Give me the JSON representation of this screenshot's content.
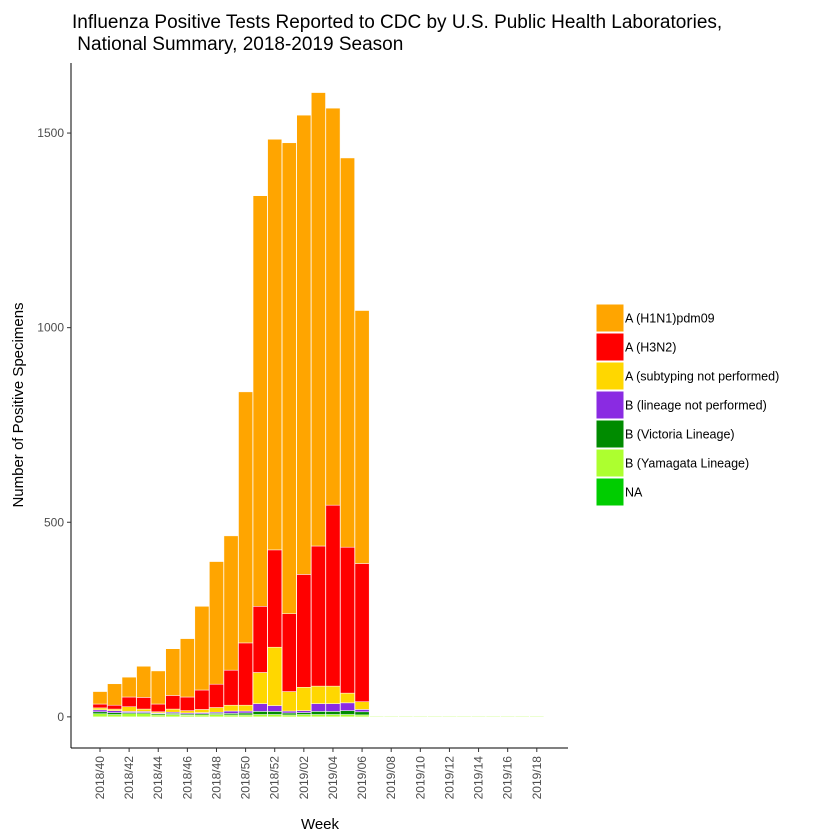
{
  "chart_data": {
    "type": "bar",
    "stacked": true,
    "title": [
      "Influenza Positive Tests Reported to CDC by U.S. Public Health Laboratories,",
      " National Summary, 2018-2019 Season"
    ],
    "xlabel": "Week",
    "ylabel": "Number of Positive Specimens",
    "ylim": [
      -80,
      1680
    ],
    "yticks": [
      0,
      500,
      1000,
      1500
    ],
    "grid": false,
    "legend_position": "right",
    "categories": [
      "2018/40",
      "2018/41",
      "2018/42",
      "2018/43",
      "2018/44",
      "2018/45",
      "2018/46",
      "2018/47",
      "2018/48",
      "2018/49",
      "2018/50",
      "2018/51",
      "2018/52",
      "2019/01",
      "2019/02",
      "2019/03",
      "2019/04",
      "2019/05",
      "2019/06",
      "2019/07",
      "2019/08",
      "2019/09",
      "2019/10",
      "2019/11",
      "2019/12",
      "2019/13",
      "2019/14",
      "2019/15",
      "2019/16",
      "2019/17",
      "2019/18"
    ],
    "tick_labels": [
      "2018/40",
      "2018/42",
      "2018/44",
      "2018/46",
      "2018/48",
      "2018/50",
      "2018/52",
      "2019/02",
      "2019/04",
      "2019/06",
      "2019/08",
      "2019/10",
      "2019/12",
      "2019/14",
      "2019/16",
      "2019/18"
    ],
    "series": [
      {
        "name": "NA",
        "color": "#00cd00",
        "values": [
          0,
          0,
          0,
          0,
          0,
          0,
          0,
          0,
          0,
          0,
          0,
          0,
          0,
          0,
          0,
          0,
          0,
          0,
          0,
          0,
          0,
          0,
          0,
          0,
          0,
          0,
          0,
          0,
          0,
          0,
          0
        ]
      },
      {
        "name": "B (Yamagata Lineage)",
        "color": "#adff2f",
        "values": [
          8,
          6,
          8,
          8,
          5,
          6,
          4,
          5,
          6,
          5,
          5,
          6,
          6,
          5,
          6,
          6,
          6,
          6,
          5,
          2,
          2,
          2,
          2,
          2,
          2,
          2,
          2,
          2,
          2,
          2,
          2
        ]
      },
      {
        "name": "B (Victoria Lineage)",
        "color": "#008b00",
        "values": [
          5,
          5,
          3,
          3,
          3,
          3,
          3,
          3,
          3,
          4,
          5,
          8,
          8,
          5,
          5,
          8,
          8,
          10,
          8,
          0,
          0,
          0,
          0,
          0,
          0,
          0,
          0,
          0,
          0,
          0,
          0
        ]
      },
      {
        "name": "B (lineage not performed)",
        "color": "#8a2be2",
        "values": [
          5,
          5,
          3,
          3,
          2,
          3,
          3,
          3,
          3,
          6,
          5,
          20,
          15,
          5,
          5,
          20,
          20,
          20,
          6,
          0,
          0,
          0,
          0,
          0,
          0,
          0,
          0,
          0,
          0,
          0,
          0
        ]
      },
      {
        "name": "A (subtyping not performed)",
        "color": "#ffd700",
        "values": [
          5,
          4,
          12,
          6,
          3,
          8,
          6,
          8,
          12,
          15,
          15,
          80,
          150,
          50,
          60,
          45,
          45,
          25,
          20,
          0,
          0,
          0,
          0,
          0,
          0,
          0,
          0,
          0,
          0,
          0,
          0
        ]
      },
      {
        "name": "A (H3N2)",
        "color": "#ff0000",
        "values": [
          10,
          10,
          25,
          30,
          20,
          35,
          35,
          50,
          60,
          90,
          160,
          170,
          250,
          200,
          290,
          360,
          465,
          375,
          355,
          0,
          0,
          0,
          0,
          0,
          0,
          0,
          0,
          0,
          0,
          0,
          0
        ]
      },
      {
        "name": "A (H1N1)pdm09",
        "color": "#ffa500",
        "values": [
          32,
          55,
          51,
          80,
          85,
          120,
          150,
          215,
          315,
          345,
          645,
          1055,
          1055,
          1210,
          1180,
          1165,
          1020,
          1000,
          650,
          0,
          0,
          0,
          0,
          0,
          0,
          0,
          0,
          0,
          0,
          0,
          0
        ]
      }
    ]
  }
}
